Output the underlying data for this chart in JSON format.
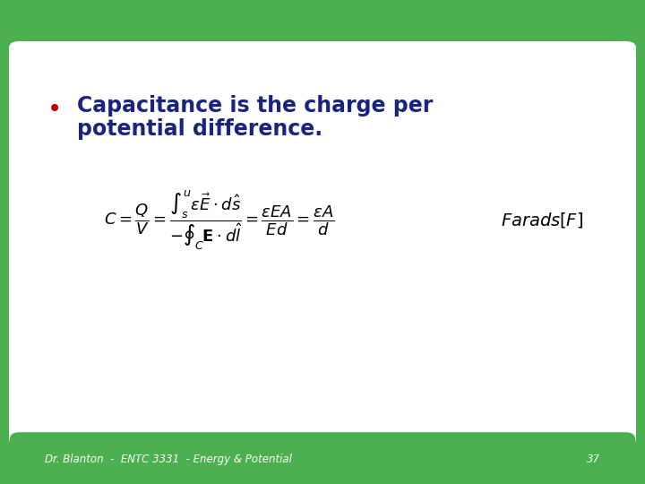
{
  "background_color": "#4caf50",
  "slide_bg": "#ffffff",
  "bullet_color": "#cc0000",
  "text_color": "#1a237e",
  "bullet_text_line1": "Capacitance is the charge per",
  "bullet_text_line2": "potential difference.",
  "footer_text": "Dr. Blanton  -  ENTC 3331  - Energy & Potential",
  "footer_number": "37",
  "footer_text_color": "#ffffff",
  "farads_label": "$\\mathit{Farads}[F]$"
}
